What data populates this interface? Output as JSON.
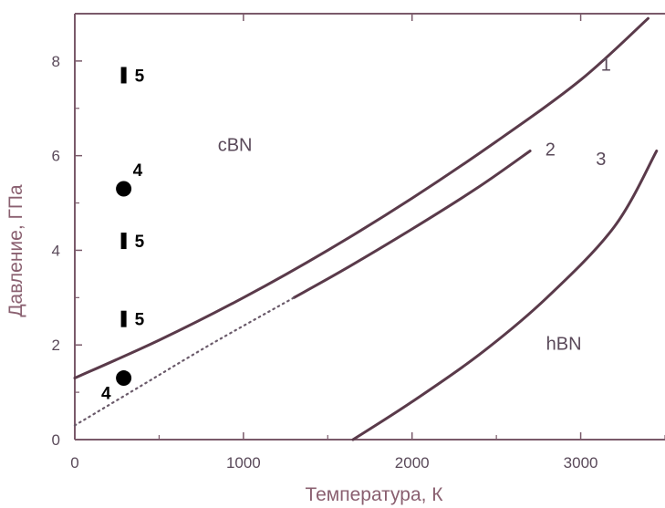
{
  "chart_data": {
    "type": "line",
    "xlabel": "Температура, К",
    "ylabel": "Давление, ГПа",
    "xlim": [
      0,
      3500
    ],
    "ylim": [
      0,
      9
    ],
    "xticks": [
      "0",
      "1000",
      "2000",
      "3000"
    ],
    "yticks": [
      "0",
      "2",
      "4",
      "6",
      "8"
    ],
    "region_labels": [
      "cBN",
      "hBN"
    ],
    "series": [
      {
        "name": "1",
        "color": "#5a3a4a",
        "style": "solid",
        "x": [
          0,
          500,
          1000,
          1500,
          2000,
          2500,
          3000,
          3400
        ],
        "y": [
          1.3,
          2.1,
          3.0,
          4.0,
          5.1,
          6.3,
          7.6,
          8.9
        ]
      },
      {
        "name": "2",
        "color": "#5a3a4a",
        "style": "solid",
        "x": [
          1300,
          1600,
          2000,
          2400,
          2700
        ],
        "y": [
          3.0,
          3.6,
          4.45,
          5.35,
          6.1
        ]
      },
      {
        "name": "2-extrapolated",
        "color": "#6a5a6a",
        "style": "dotted",
        "x": [
          0,
          400,
          800,
          1300
        ],
        "y": [
          0.3,
          1.15,
          2.0,
          3.0
        ]
      },
      {
        "name": "3",
        "color": "#5a3a4a",
        "style": "solid",
        "x": [
          1650,
          2000,
          2400,
          2800,
          3200,
          3450
        ],
        "y": [
          0,
          0.8,
          1.8,
          3.0,
          4.5,
          6.1
        ]
      }
    ],
    "points": [
      {
        "label": "5",
        "marker": "bar",
        "x": 290,
        "y": 7.7
      },
      {
        "label": "4",
        "marker": "circle",
        "x": 290,
        "y": 5.3
      },
      {
        "label": "5",
        "marker": "bar",
        "x": 290,
        "y": 4.2
      },
      {
        "label": "5",
        "marker": "bar",
        "x": 290,
        "y": 2.55
      },
      {
        "label": "4",
        "marker": "circle",
        "x": 290,
        "y": 1.3
      }
    ],
    "grid": false,
    "legend": "none"
  }
}
